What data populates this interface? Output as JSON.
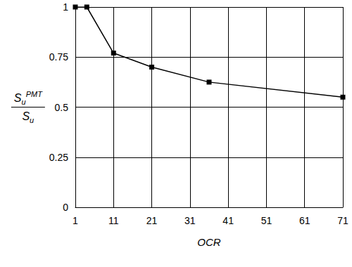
{
  "chart_data": {
    "type": "line",
    "x_label": "OCR",
    "y_label": {
      "numerator": "S",
      "numerator_subscript": "u",
      "numerator_superscript": "PMT",
      "denominator": "S",
      "denominator_subscript": "u"
    },
    "x": [
      1,
      4,
      11,
      21,
      36,
      71
    ],
    "values": [
      1,
      1,
      0.77,
      0.7,
      0.625,
      0.55
    ],
    "color": "#000000",
    "marker": "square",
    "line_style": "solid",
    "xlim": [
      1,
      71
    ],
    "xticks": [
      1,
      11,
      21,
      31,
      41,
      51,
      61,
      71
    ],
    "ylim": [
      0,
      1
    ],
    "yticks": [
      0,
      0.25,
      0.5,
      0.75,
      1
    ],
    "grid": true
  }
}
